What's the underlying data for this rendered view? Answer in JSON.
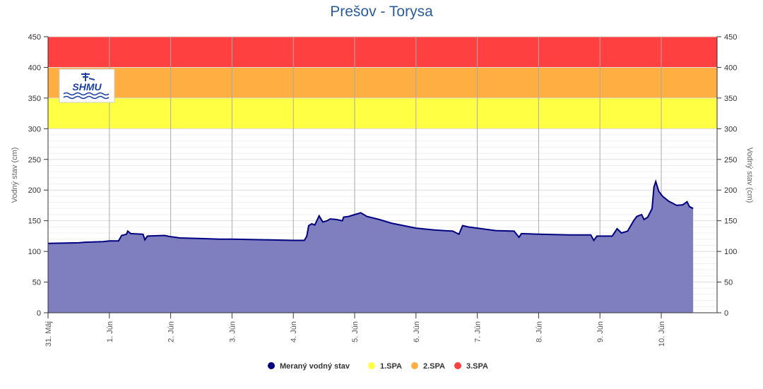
{
  "chart_data": {
    "type": "area",
    "title": "Prešov - Torysa",
    "ylabel": "Vodný stav (cm)",
    "ylabel_right": "Vodný stav (cm)",
    "ylim": [
      0,
      450
    ],
    "yticks": [
      0,
      50,
      100,
      150,
      200,
      250,
      300,
      350,
      400,
      450
    ],
    "x_tick_labels": [
      "31. Máj",
      "1. Jún",
      "2. Jún",
      "3. Jún",
      "4. Jún",
      "5. Jún",
      "6. Jún",
      "7. Jún",
      "8. Jún",
      "9. Jún",
      "10. Jún"
    ],
    "x_unit": "days since 31. Máj 00:00",
    "xlim": [
      0,
      10.9
    ],
    "bands": [
      {
        "name": "1.SPA",
        "from": 300,
        "to": 350,
        "color": "#ffff44"
      },
      {
        "name": "2.SPA",
        "from": 350,
        "to": 400,
        "color": "#ffae42"
      },
      {
        "name": "3.SPA",
        "from": 400,
        "to": 450,
        "color": "#ff4040"
      }
    ],
    "series": [
      {
        "name": "Meraný vodný stav",
        "color": "#000080",
        "fill": "#7f7fbf",
        "points": [
          [
            0,
            113
          ],
          [
            0.5,
            114
          ],
          [
            0.6,
            115
          ],
          [
            0.9,
            116
          ],
          [
            1.0,
            117
          ],
          [
            1.15,
            117
          ],
          [
            1.2,
            126
          ],
          [
            1.28,
            128
          ],
          [
            1.3,
            133
          ],
          [
            1.35,
            129
          ],
          [
            1.55,
            128
          ],
          [
            1.58,
            119
          ],
          [
            1.62,
            125
          ],
          [
            1.9,
            126
          ],
          [
            2.0,
            124
          ],
          [
            2.15,
            122
          ],
          [
            2.5,
            121
          ],
          [
            2.8,
            120
          ],
          [
            3.0,
            120
          ],
          [
            3.5,
            119
          ],
          [
            4.0,
            118
          ],
          [
            4.18,
            118
          ],
          [
            4.22,
            125
          ],
          [
            4.25,
            142
          ],
          [
            4.3,
            145
          ],
          [
            4.35,
            143
          ],
          [
            4.42,
            158
          ],
          [
            4.48,
            148
          ],
          [
            4.55,
            150
          ],
          [
            4.6,
            153
          ],
          [
            4.7,
            152
          ],
          [
            4.8,
            150
          ],
          [
            4.82,
            156
          ],
          [
            4.9,
            157
          ],
          [
            5.0,
            160
          ],
          [
            5.1,
            163
          ],
          [
            5.2,
            157
          ],
          [
            5.4,
            152
          ],
          [
            5.6,
            146
          ],
          [
            6.0,
            138
          ],
          [
            6.3,
            135
          ],
          [
            6.6,
            133
          ],
          [
            6.7,
            128
          ],
          [
            6.76,
            142
          ],
          [
            6.85,
            140
          ],
          [
            7.0,
            138
          ],
          [
            7.3,
            134
          ],
          [
            7.6,
            133
          ],
          [
            7.68,
            123
          ],
          [
            7.72,
            129
          ],
          [
            8.0,
            128
          ],
          [
            8.5,
            127
          ],
          [
            8.85,
            127
          ],
          [
            8.9,
            118
          ],
          [
            8.95,
            125
          ],
          [
            9.2,
            125
          ],
          [
            9.28,
            137
          ],
          [
            9.35,
            130
          ],
          [
            9.45,
            133
          ],
          [
            9.55,
            150
          ],
          [
            9.6,
            157
          ],
          [
            9.68,
            160
          ],
          [
            9.72,
            152
          ],
          [
            9.78,
            156
          ],
          [
            9.85,
            170
          ],
          [
            9.88,
            205
          ],
          [
            9.91,
            214
          ],
          [
            9.96,
            198
          ],
          [
            10.02,
            190
          ],
          [
            10.12,
            182
          ],
          [
            10.25,
            175
          ],
          [
            10.35,
            176
          ],
          [
            10.42,
            181
          ],
          [
            10.46,
            173
          ],
          [
            10.52,
            170
          ]
        ]
      }
    ],
    "legend": {
      "placement": "bottom",
      "items": [
        {
          "label": "Meraný vodný stav",
          "color": "#000080"
        },
        {
          "label": "1.SPA",
          "color": "#ffff44"
        },
        {
          "label": "2.SPA",
          "color": "#ffae42"
        },
        {
          "label": "3.SPA",
          "color": "#ff4040"
        }
      ]
    },
    "logo_text": "SHMÚ"
  }
}
